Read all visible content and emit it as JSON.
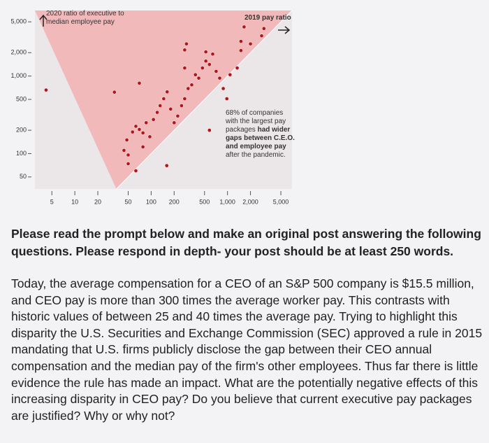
{
  "chart_data": {
    "type": "scatter",
    "y_axis_title": "2020 ratio of executive to median employee pay",
    "x_axis_title": "2019 pay ratio",
    "annotation": {
      "lead": "68% of companies with the largest pay packages",
      "bold": "had wider gaps between C.E.O. and employee pay",
      "tail": "after the pandemic."
    },
    "xscale": "log",
    "yscale": "log",
    "xlim": [
      3,
      7000
    ],
    "ylim": [
      35,
      7000
    ],
    "xticks": [
      5,
      10,
      20,
      50,
      100,
      200,
      500,
      {
        "value": 1000,
        "label": "1,000"
      },
      {
        "value": 2000,
        "label": "2,000"
      },
      {
        "value": 5000,
        "label": "5,000"
      }
    ],
    "yticks": [
      50,
      100,
      200,
      500,
      {
        "value": 1000,
        "label": "1,000"
      },
      {
        "value": 2000,
        "label": "2,000"
      },
      {
        "value": 5000,
        "label": "5,000"
      }
    ],
    "color": "#b3141c",
    "region_color": "#f2b9bb",
    "plot_color": "#ebe7e8",
    "x": [
      4.2,
      33,
      70,
      44,
      48,
      50,
      57,
      63,
      70,
      78,
      86,
      96,
      107,
      120,
      131,
      146,
      162,
      180,
      200,
      223,
      250,
      275,
      305,
      340,
      380,
      420,
      470,
      520,
      580,
      640,
      710,
      790,
      880,
      980,
      1080,
      1340,
      1500,
      1650,
      275,
      275,
      290,
      520,
      1500,
      2800,
      3000,
      2000,
      160,
      580,
      78,
      50,
      63
    ],
    "y": [
      660,
      620,
      810,
      110,
      150,
      96,
      190,
      225,
      205,
      185,
      250,
      165,
      275,
      340,
      415,
      510,
      625,
      375,
      250,
      305,
      415,
      510,
      690,
      770,
      1040,
      940,
      1270,
      1560,
      1410,
      1920,
      1150,
      940,
      690,
      510,
      1040,
      1270,
      2130,
      4300,
      2170,
      1270,
      2600,
      2050,
      2800,
      3300,
      4100,
      2600,
      70,
      200,
      122,
      74,
      60
    ]
  },
  "prompt": {
    "heading": "Please read the prompt below and make an original post answering the following questions. Please respond in depth- your post should be at least 250 words.",
    "body": "Today, the average compensation for a CEO of an S&P 500 company is $15.5 million, and CEO pay is more than 300 times the average worker pay. This contrasts with historic values of between 25 and 40 times the average pay. Trying to highlight this disparity the U.S. Securities and Exchange Commission (SEC) approved a rule in 2015 mandating that U.S. firms publicly disclose the gap between their CEO annual compensation and the median pay of the firm's other employees. Thus far there is little evidence the rule has made an impact. What are the potentially negative effects of this increasing disparity in CEO pay? Do you believe that current executive pay packages are justified? Why or why not?"
  }
}
